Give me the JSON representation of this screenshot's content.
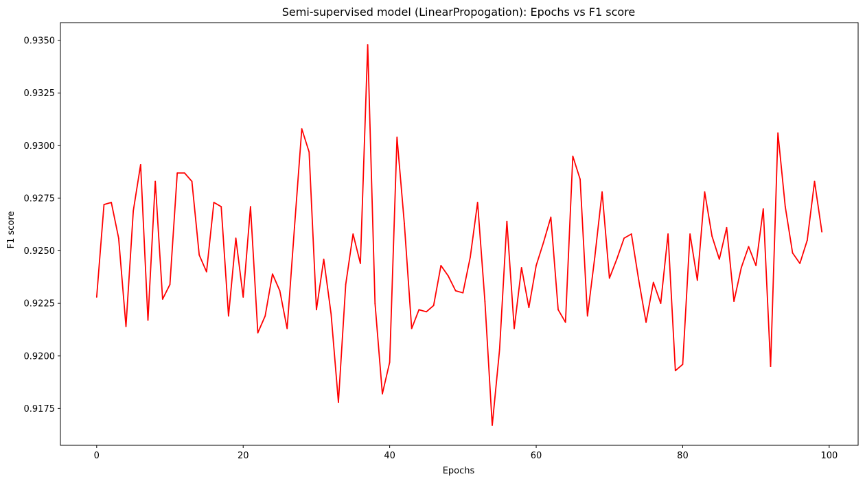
{
  "chart_data": {
    "type": "line",
    "title": "Semi-supervised model (LinearPropogation): Epochs vs F1 score",
    "xlabel": "Epochs",
    "ylabel": "F1 score",
    "xlim": [
      -4.95,
      103.95
    ],
    "ylim": [
      0.91575,
      0.93585
    ],
    "xticks": [
      0,
      20,
      40,
      60,
      80,
      100
    ],
    "yticks": [
      0.9175,
      0.92,
      0.9225,
      0.925,
      0.9275,
      0.93,
      0.9325,
      0.935
    ],
    "ytick_labels": [
      "0.9175",
      "0.9200",
      "0.9225",
      "0.9250",
      "0.9275",
      "0.9300",
      "0.9325",
      "0.9350"
    ],
    "grid": false,
    "series": [
      {
        "color": "#ff0000",
        "x": [
          0,
          1,
          2,
          3,
          4,
          5,
          6,
          7,
          8,
          9,
          10,
          11,
          12,
          13,
          14,
          15,
          16,
          17,
          18,
          19,
          20,
          21,
          22,
          23,
          24,
          25,
          26,
          27,
          28,
          29,
          30,
          31,
          32,
          33,
          34,
          35,
          36,
          37,
          38,
          39,
          40,
          41,
          42,
          43,
          44,
          45,
          46,
          47,
          48,
          49,
          50,
          51,
          52,
          53,
          54,
          55,
          56,
          57,
          58,
          59,
          60,
          61,
          62,
          63,
          64,
          65,
          66,
          67,
          68,
          69,
          70,
          71,
          72,
          73,
          74,
          75,
          76,
          77,
          78,
          79,
          80,
          81,
          82,
          83,
          84,
          85,
          86,
          87,
          88,
          89,
          90,
          91,
          92,
          93,
          94,
          95,
          96,
          97,
          98,
          99
        ],
        "values": [
          0.9228,
          0.9272,
          0.9273,
          0.9256,
          0.9214,
          0.9269,
          0.9291,
          0.9217,
          0.9283,
          0.9227,
          0.9234,
          0.9287,
          0.9287,
          0.9283,
          0.9248,
          0.924,
          0.9273,
          0.9271,
          0.9219,
          0.9256,
          0.9228,
          0.9271,
          0.9211,
          0.9219,
          0.9239,
          0.9231,
          0.9213,
          0.9261,
          0.9308,
          0.9297,
          0.9222,
          0.9246,
          0.922,
          0.9178,
          0.9234,
          0.9258,
          0.9244,
          0.9348,
          0.9225,
          0.9182,
          0.9197,
          0.9304,
          0.9263,
          0.9213,
          0.9222,
          0.9221,
          0.9224,
          0.9243,
          0.9238,
          0.9231,
          0.923,
          0.9247,
          0.9273,
          0.9226,
          0.9167,
          0.9203,
          0.9264,
          0.9213,
          0.9242,
          0.9223,
          0.9243,
          0.9254,
          0.9266,
          0.9222,
          0.9216,
          0.9295,
          0.9284,
          0.9219,
          0.9247,
          0.9278,
          0.9237,
          0.9246,
          0.9256,
          0.9258,
          0.9236,
          0.9216,
          0.9235,
          0.9225,
          0.9258,
          0.9193,
          0.9196,
          0.9258,
          0.9236,
          0.9278,
          0.9257,
          0.9246,
          0.9261,
          0.9226,
          0.9242,
          0.9252,
          0.9243,
          0.927,
          0.9195,
          0.9306,
          0.9271,
          0.9249,
          0.9244,
          0.9255,
          0.9283,
          0.9259
        ]
      }
    ]
  }
}
